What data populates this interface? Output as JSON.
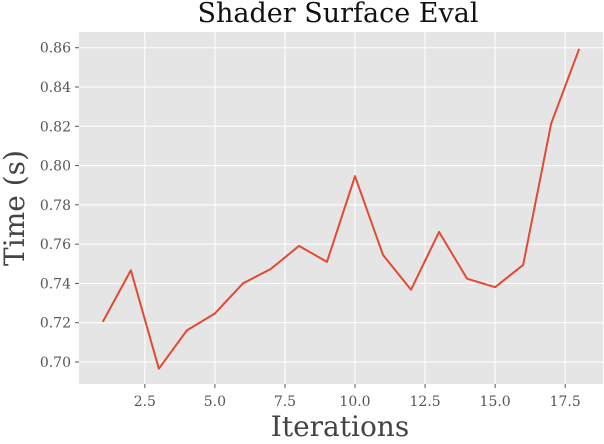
{
  "chart_data": {
    "type": "line",
    "title": "Shader Surface Eval",
    "xlabel": "Iterations",
    "ylabel": "Time (s)",
    "xlim": [
      0.15,
      18.85
    ],
    "ylim": [
      0.6888,
      0.868
    ],
    "xticks": [
      2.5,
      5.0,
      7.5,
      10.0,
      12.5,
      15.0,
      17.5
    ],
    "xtick_labels": [
      "2.5",
      "5.0",
      "7.5",
      "10.0",
      "12.5",
      "15.0",
      "17.5"
    ],
    "yticks": [
      0.7,
      0.72,
      0.74,
      0.76,
      0.78,
      0.8,
      0.82,
      0.84,
      0.86
    ],
    "ytick_labels": [
      "0.70",
      "0.72",
      "0.74",
      "0.76",
      "0.78",
      "0.80",
      "0.82",
      "0.84",
      "0.86"
    ],
    "grid": true,
    "background_color": "#e5e5e5",
    "grid_color": "#ffffff",
    "series": [
      {
        "color": "#e24a33",
        "x": [
          1,
          2,
          3,
          4,
          5,
          6,
          7,
          8,
          9,
          10,
          11,
          12,
          13,
          14,
          15,
          16,
          17,
          18
        ],
        "y": [
          0.7205,
          0.7467,
          0.6966,
          0.7161,
          0.7247,
          0.74,
          0.7474,
          0.7591,
          0.751,
          0.7946,
          0.7545,
          0.7368,
          0.7662,
          0.7424,
          0.7381,
          0.7494,
          0.8214,
          0.8594
        ]
      }
    ]
  }
}
